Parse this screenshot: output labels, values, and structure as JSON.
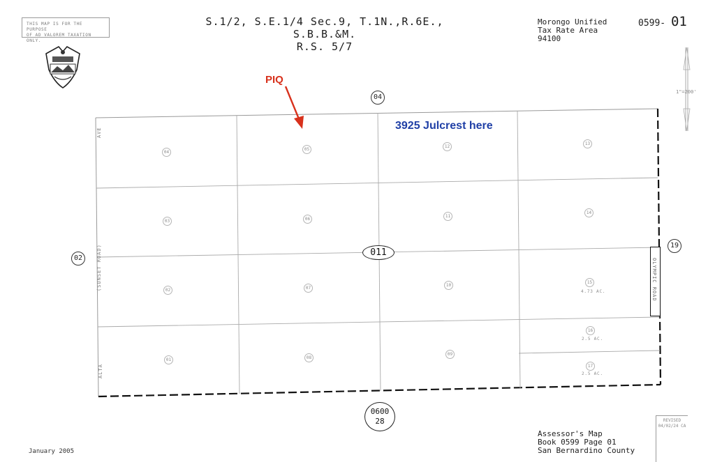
{
  "disclaimer": {
    "line1": "THIS MAP IS FOR THE PURPOSE",
    "line2": "OF AD VALOREM TAXATION ONLY."
  },
  "title": {
    "line1": "S.1/2, S.E.1/4  Sec.9, T.1N.,R.6E., S.B.B.&M.",
    "line2": "R.S. 5/7"
  },
  "tax_area": {
    "district": "Morongo Unified",
    "label": "Tax Rate Area",
    "code": "94100"
  },
  "map_number": {
    "prefix": "0599-",
    "suffix": "01"
  },
  "annotations": {
    "piq": "PIQ",
    "note": "3925 Julcrest here",
    "arrow_color": "#d8311c",
    "note_color": "#1f3fa6"
  },
  "seal": {
    "icon": "county-seal-icon"
  },
  "north_arrow": {
    "icon": "north-arrow-icon",
    "scale": "1\"=200'"
  },
  "adjacent_maps": {
    "north": "04",
    "west": "02",
    "east": "19",
    "south_book": "0600",
    "south_page": "28"
  },
  "block_number": "011",
  "streets": {
    "west_top": "AVE",
    "west_middle": "(SUNSET ROAD)",
    "west_bottom": "ALTA",
    "east": "OLYMPIC ROAD"
  },
  "parcels": [
    {
      "id": "04"
    },
    {
      "id": "05"
    },
    {
      "id": "12"
    },
    {
      "id": "13"
    },
    {
      "id": "03"
    },
    {
      "id": "06"
    },
    {
      "id": "11"
    },
    {
      "id": "14"
    },
    {
      "id": "02"
    },
    {
      "id": "07"
    },
    {
      "id": "10"
    },
    {
      "id": "15",
      "acres": "4.73 AC."
    },
    {
      "id": "01"
    },
    {
      "id": "08"
    },
    {
      "id": "09"
    },
    {
      "id": "16",
      "acres": "2.5 AC."
    },
    {
      "id": "17",
      "acres": "2.5 AC."
    }
  ],
  "revised": {
    "label": "REVISED",
    "date": "04/02/24 CA"
  },
  "footer": {
    "date": "January 2005",
    "line1": "Assessor's Map",
    "line2": "Book 0599 Page 01",
    "line3": "San Bernardino County"
  }
}
